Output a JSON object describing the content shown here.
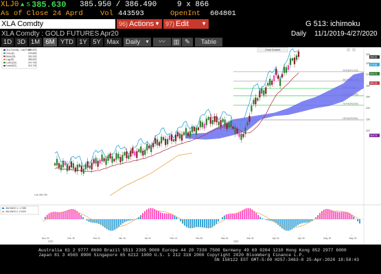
{
  "ticker": {
    "code": "XLJ0",
    "arrow": "▲",
    "price_prefix": "s",
    "price": "385.630",
    "bid_ask": "385.950 / 386.490",
    "size": "9 x 866",
    "as_of": "As of Close 24 Aprd",
    "vol_label": "Vol",
    "vol": "443593",
    "openint_label": "OpenInt",
    "openint": "604801"
  },
  "toolbar": {
    "security": "XLA Comdty",
    "actions_num": "96)",
    "actions_label": "Actions",
    "edit_num": "97)",
    "edit_label": "Edit",
    "function": "G 513: ichimoku"
  },
  "header": {
    "name": "XLA Comdty : GOLD FUTURES",
    "contract": "Apr20",
    "period": "Daily",
    "range": "11/1/2019-4/27/2020"
  },
  "tabs": {
    "items": [
      "1D",
      "3D",
      "1M",
      "6M",
      "YTD",
      "1Y",
      "5Y",
      "Max"
    ],
    "active": "6M",
    "freq": "Daily",
    "table_label": "Table"
  },
  "legend": {
    "items": [
      {
        "label": "XLA Comdty - Last Price",
        "value": "385.630",
        "color": "#333333"
      },
      {
        "label": "Conv(9)",
        "value": "378.880",
        "color": "#1e88e5"
      },
      {
        "label": "Base(26)",
        "value": "362.330",
        "color": "#c62828"
      },
      {
        "label": "Lag(26)",
        "value": "385.630",
        "color": "#f57c00"
      },
      {
        "label": "Lead1(26)",
        "value": "370.705",
        "color": "#2e7d32"
      },
      {
        "label": "Lead2(52)",
        "value": "315.725",
        "color": "#7b1fa2"
      }
    ],
    "osc_label": "Chart Content"
  },
  "osc_legend": [
    "40d MACD 1 -1.7185",
    "40d MACD 2 -0.0023"
  ],
  "levels": [
    {
      "label": "23.6%(372.422)"
    },
    {
      "label": "38.2%(364.238)"
    },
    {
      "label": "50%(357.621)"
    },
    {
      "label": "61.8%(351.005)"
    },
    {
      "label": "76.4%(342.826)"
    },
    {
      "label": "100%(329.595)"
    }
  ],
  "right_axis": [
    "388",
    "380",
    "370",
    "360",
    "350",
    "340",
    "330",
    "320"
  ],
  "right_badges": [
    "385.63",
    "378.88",
    "370.71",
    "362.33",
    "315.73"
  ],
  "low_label": "Low 282.790",
  "x_axis": [
    "Nov 15",
    "Dec 16",
    "Dec 31",
    "Jan 15",
    "Jan 31",
    "Feb 14",
    "Feb 28",
    "Mar 16",
    "Mar 31",
    "Apr 15",
    "Apr 30",
    "May 15",
    "May 29"
  ],
  "x_years": [
    "2019",
    "2020"
  ],
  "footer": {
    "line1": "Australia 61 2 9777 8600 Brazil 5511 2395 9000 Europe 44 20 7330 7500 Germany 49 69 9204 1210 Hong Kong 852 2977 6000",
    "line2": "Japan 81 3 4565 8900        Singapore 65 6212 1000        U.S. 1 212 318 2000        Copyright 2020 Bloomberg Finance L.P.",
    "line3": "SN 158122 EST  GMT-5:00 H257-3463-0 25-Apr-2020 18:58:43"
  },
  "colors": {
    "accent_orange": "#f5a623",
    "price_green": "#3ddc55",
    "bar_up": "#2e7d32",
    "bar_down": "#8e1b2a",
    "spike": "#ff3dbd",
    "cloud": "#6a6ef0",
    "conv_line": "#29a5d6",
    "base_line": "#b53a4a",
    "lag_line": "#e8a33d"
  }
}
